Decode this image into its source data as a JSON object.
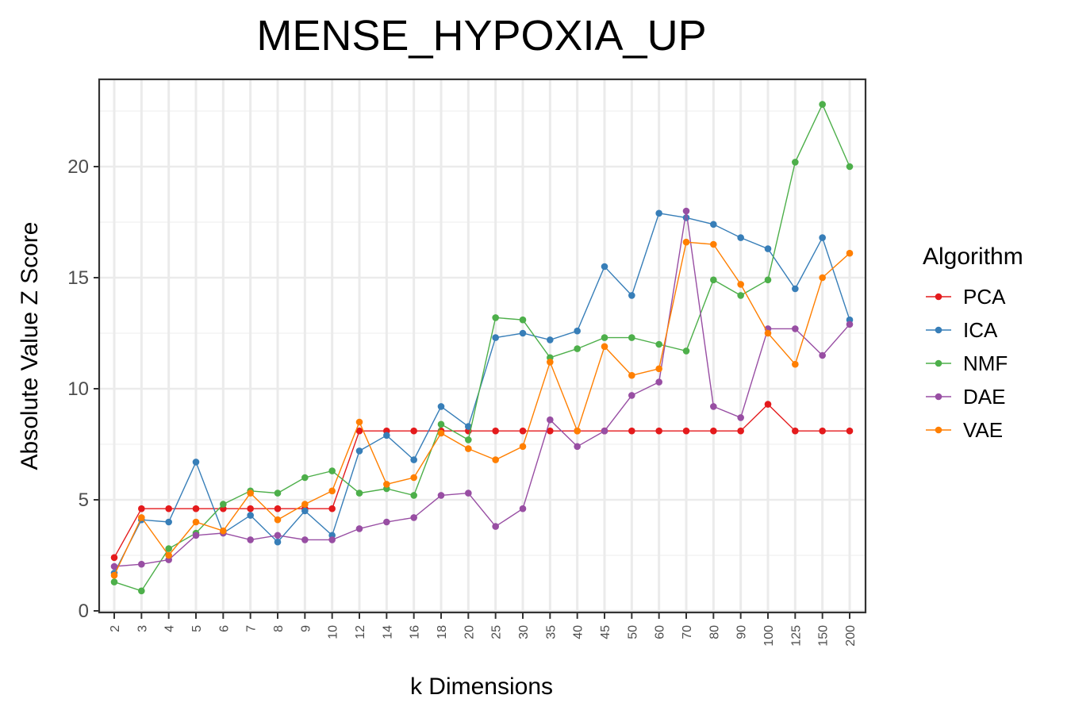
{
  "chart_data": {
    "type": "line",
    "title": "MENSE_HYPOXIA_UP",
    "xlabel": "k Dimensions",
    "ylabel": "Absolute Value Z Score",
    "categories": [
      "2",
      "3",
      "4",
      "5",
      "6",
      "7",
      "8",
      "9",
      "10",
      "12",
      "14",
      "16",
      "18",
      "20",
      "25",
      "30",
      "35",
      "40",
      "45",
      "50",
      "60",
      "70",
      "80",
      "90",
      "100",
      "125",
      "150",
      "200"
    ],
    "ylim": [
      0,
      23.5
    ],
    "yticks": [
      0,
      5,
      10,
      15,
      20
    ],
    "ytick_labels": [
      "0",
      "5",
      "10",
      "15",
      "20"
    ],
    "grid": true,
    "legend": {
      "title": "Algorithm",
      "placement": "right"
    },
    "series": [
      {
        "name": "PCA",
        "color": "#e41a1c",
        "values": [
          2.4,
          4.6,
          4.6,
          4.6,
          4.6,
          4.6,
          4.6,
          4.6,
          4.6,
          8.1,
          8.1,
          8.1,
          8.1,
          8.1,
          8.1,
          8.1,
          8.1,
          8.1,
          8.1,
          8.1,
          8.1,
          8.1,
          8.1,
          8.1,
          9.3,
          8.1,
          8.1,
          8.1
        ]
      },
      {
        "name": "ICA",
        "color": "#377eb8",
        "values": [
          1.7,
          4.1,
          4.0,
          6.7,
          3.5,
          4.3,
          3.1,
          4.5,
          3.4,
          7.2,
          7.9,
          6.8,
          9.2,
          8.3,
          12.3,
          12.5,
          12.2,
          12.6,
          15.5,
          14.2,
          17.9,
          17.7,
          17.4,
          16.8,
          16.3,
          14.5,
          16.8,
          13.1
        ]
      },
      {
        "name": "NMF",
        "color": "#4daf4a",
        "values": [
          1.3,
          0.9,
          2.8,
          3.5,
          4.8,
          5.4,
          5.3,
          6.0,
          6.3,
          5.3,
          5.5,
          5.2,
          8.4,
          7.7,
          13.2,
          13.1,
          11.4,
          11.8,
          12.3,
          12.3,
          12.0,
          11.7,
          14.9,
          14.2,
          14.9,
          20.2,
          22.8,
          20.0
        ]
      },
      {
        "name": "DAE",
        "color": "#984ea3",
        "values": [
          2.0,
          2.1,
          2.3,
          3.4,
          3.5,
          3.2,
          3.4,
          3.2,
          3.2,
          3.7,
          4.0,
          4.2,
          5.2,
          5.3,
          3.8,
          4.6,
          8.6,
          7.4,
          8.1,
          9.7,
          10.3,
          18.0,
          9.2,
          8.7,
          12.7,
          12.7,
          11.5,
          12.9
        ]
      },
      {
        "name": "VAE",
        "color": "#ff7f00",
        "values": [
          1.6,
          4.2,
          2.5,
          4.0,
          3.6,
          5.3,
          4.1,
          4.8,
          5.4,
          8.5,
          5.7,
          6.0,
          8.0,
          7.3,
          6.8,
          7.4,
          11.2,
          8.1,
          11.9,
          10.6,
          10.9,
          16.6,
          16.5,
          14.7,
          12.5,
          11.1,
          15.0,
          16.1
        ]
      }
    ]
  }
}
